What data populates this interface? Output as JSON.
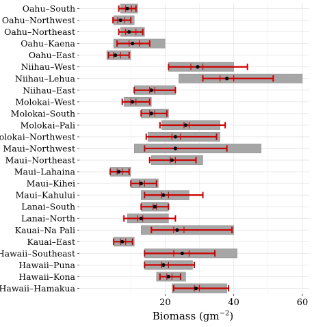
{
  "chart_data": {
    "type": "forest",
    "xlabel": "Biomass (gm",
    "xlabel_exp": "−2",
    "xlabel_close": ")",
    "xlim": [
      -5,
      62
    ],
    "xticks": [
      20,
      40,
      60
    ],
    "grid": true,
    "colors": {
      "range_box": "#a6a6a6",
      "error_bar": "#cc0000",
      "point": "#000000",
      "grid": "#e6e6e6"
    },
    "rows": [
      {
        "label": "Oahu–South",
        "range": [
          7,
          12
        ],
        "ci": [
          6.5,
          11.5
        ],
        "mean": 9,
        "ci_ticks": [
          8.5,
          10.2
        ]
      },
      {
        "label": "Oahu–Northwest",
        "range": [
          5,
          11
        ],
        "ci": [
          4.8,
          10
        ],
        "mean": 7,
        "ci_ticks": [
          6.2,
          8.2
        ]
      },
      {
        "label": "Oahu–Northeast",
        "range": [
          7,
          14
        ],
        "ci": [
          6.5,
          13.5
        ],
        "mean": 9.5,
        "ci_ticks": [
          8.5,
          11.5
        ]
      },
      {
        "label": "Oahu–Kaena",
        "range": [
          5,
          20
        ],
        "ci": [
          6,
          15.5
        ],
        "mean": 10.5,
        "ci_ticks": [
          9.5,
          12.5
        ]
      },
      {
        "label": "Oahu–East",
        "range": [
          3,
          10
        ],
        "ci": [
          3.5,
          9.5
        ],
        "mean": 5.5,
        "ci_ticks": [
          5,
          7
        ]
      },
      {
        "label": "Niihau–West",
        "range": [
          21,
          40
        ],
        "ci": [
          21,
          44
        ],
        "mean": 29.5,
        "ci_ticks": [
          27.5,
          31
        ]
      },
      {
        "label": "Niihau–Lehua",
        "range": [
          24,
          60
        ],
        "ci": [
          31,
          51.5
        ],
        "mean": 38,
        "ci_ticks": [
          36,
          40
        ]
      },
      {
        "label": "Niihau–East",
        "range": [
          11,
          23
        ],
        "ci": [
          11,
          23
        ],
        "mean": 16,
        "ci_ticks": [
          15.5,
          17
        ]
      },
      {
        "label": "Molokai–West",
        "range": [
          8,
          16
        ],
        "ci": [
          7.5,
          15.5
        ],
        "mean": 10.5,
        "ci_ticks": [
          10,
          11.5
        ]
      },
      {
        "label": "Molokai–South",
        "range": [
          13,
          21
        ],
        "ci": [
          13,
          20.5
        ],
        "mean": 16,
        "ci_ticks": [
          15.5,
          17
        ]
      },
      {
        "label": "Molokai–Pali",
        "range": [
          19,
          36
        ],
        "ci": [
          18.5,
          37.5
        ],
        "mean": 26,
        "ci_ticks": [
          25.5,
          27
        ]
      },
      {
        "label": "Molokai–Northwest",
        "range": [
          15,
          36
        ],
        "ci": [
          14.5,
          35
        ],
        "mean": 23,
        "ci_ticks": [
          22,
          24.5
        ]
      },
      {
        "label": "Maui–Northwest",
        "range": [
          11,
          48
        ],
        "ci": [
          14,
          38
        ],
        "mean": 23,
        "ci_ticks": []
      },
      {
        "label": "Maui–Northeast",
        "range": [
          16,
          31
        ],
        "ci": [
          15.5,
          29
        ],
        "mean": 22,
        "ci_ticks": [
          21.5,
          23
        ]
      },
      {
        "label": "Maui–Lahaina",
        "range": [
          4,
          10
        ],
        "ci": [
          4,
          9.5
        ],
        "mean": 6.5,
        "ci_ticks": [
          6,
          7.5
        ]
      },
      {
        "label": "Maui–Kihei",
        "range": [
          10,
          18
        ],
        "ci": [
          10,
          17.5
        ],
        "mean": 13,
        "ci_ticks": [
          12.5,
          14
        ]
      },
      {
        "label": "Maui–Kahului",
        "range": [
          13,
          27
        ],
        "ci": [
          14,
          31
        ],
        "mean": 19.5,
        "ci_ticks": [
          19,
          21
        ]
      },
      {
        "label": "Lanai–South",
        "range": [
          13,
          21
        ],
        "ci": [
          13,
          21
        ],
        "mean": 17,
        "ci_ticks": [
          16.5,
          17.5
        ]
      },
      {
        "label": "Lanai–North",
        "range": [
          9,
          21
        ],
        "ci": [
          8,
          23
        ],
        "mean": 13,
        "ci_ticks": [
          12,
          13.5
        ]
      },
      {
        "label": "Kauai–Na Pali",
        "range": [
          13,
          40
        ],
        "ci": [
          16,
          39.5
        ],
        "mean": 23.5,
        "ci_ticks": [
          22.5,
          25.5
        ]
      },
      {
        "label": "Kauai–East",
        "range": [
          5,
          11
        ],
        "ci": [
          5,
          10.5
        ],
        "mean": 7.5,
        "ci_ticks": [
          7,
          8.5
        ]
      },
      {
        "label": "Hawaii–Southeast",
        "range": [
          14,
          41
        ],
        "ci": [
          14,
          34.5
        ],
        "mean": 25,
        "ci_ticks": [
          22.5,
          27
        ]
      },
      {
        "label": "Hawaii–Puna",
        "range": [
          14,
          28
        ],
        "ci": [
          14,
          28.5
        ],
        "mean": 19.5,
        "ci_ticks": [
          19,
          21
        ]
      },
      {
        "label": "Hawaii–Kona",
        "range": [
          17.5,
          26
        ],
        "ci": [
          18.5,
          24.5
        ],
        "mean": 21,
        "ci_ticks": [
          20.5,
          22
        ]
      },
      {
        "label": "Hawaii–Hamakua",
        "range": [
          22,
          38
        ],
        "ci": [
          22.5,
          38.5
        ],
        "mean": 29,
        "ci_ticks": [
          28.5,
          30
        ]
      }
    ]
  }
}
